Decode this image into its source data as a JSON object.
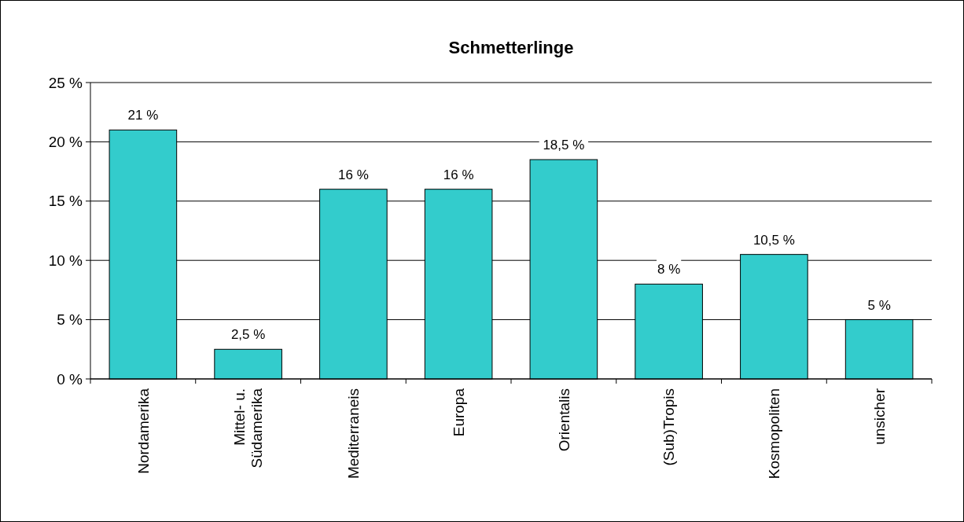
{
  "chart_data": {
    "type": "bar",
    "title": "Schmetterlinge",
    "categories": [
      "Nordamerika",
      "Mittel- u. Südamerika",
      "Mediterraneis",
      "Europa",
      "Orientalis",
      "(Sub)Tropis",
      "Kosmopoliten",
      "unsicher"
    ],
    "values": [
      21,
      2.5,
      16,
      16,
      18.5,
      8,
      10.5,
      5
    ],
    "value_labels": [
      "21 %",
      "2,5 %",
      "16 %",
      "16 %",
      "18,5 %",
      "8 %",
      "10,5 %",
      "5 %"
    ],
    "color": "#33cccc",
    "ylim": [
      0,
      25
    ],
    "yticks": [
      {
        "value": 0,
        "label": "0 %"
      },
      {
        "value": 5,
        "label": "5 %"
      },
      {
        "value": 10,
        "label": "10 %"
      },
      {
        "value": 15,
        "label": "15 %"
      },
      {
        "value": 20,
        "label": "20 %"
      },
      {
        "value": 25,
        "label": "25 %"
      }
    ],
    "grid": "y"
  }
}
